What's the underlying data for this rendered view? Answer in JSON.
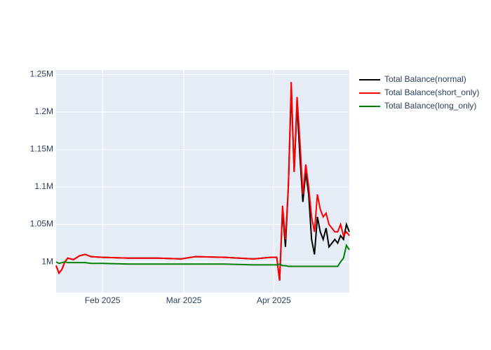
{
  "chart_data": {
    "type": "line",
    "x": [
      "2025-01-16",
      "2025-01-17",
      "2025-01-18",
      "2025-01-19",
      "2025-01-20",
      "2025-01-22",
      "2025-01-24",
      "2025-01-26",
      "2025-01-28",
      "2025-02-01",
      "2025-02-10",
      "2025-02-20",
      "2025-02-28",
      "2025-03-05",
      "2025-03-15",
      "2025-03-25",
      "2025-03-31",
      "2025-04-02",
      "2025-04-03",
      "2025-04-04",
      "2025-04-05",
      "2025-04-06",
      "2025-04-07",
      "2025-04-08",
      "2025-04-09",
      "2025-04-10",
      "2025-04-11",
      "2025-04-12",
      "2025-04-13",
      "2025-04-14",
      "2025-04-15",
      "2025-04-16",
      "2025-04-17",
      "2025-04-18",
      "2025-04-19",
      "2025-04-20",
      "2025-04-21",
      "2025-04-22",
      "2025-04-23",
      "2025-04-24",
      "2025-04-25",
      "2025-04-26",
      "2025-04-27"
    ],
    "series": [
      {
        "name": "Total Balance(normal)",
        "color": "#000000",
        "values": [
          995000,
          985000,
          990000,
          1000000,
          1005000,
          1003000,
          1008000,
          1010000,
          1007000,
          1006000,
          1005000,
          1005000,
          1004000,
          1007000,
          1006000,
          1004000,
          1006000,
          1006000,
          975000,
          1070000,
          1020000,
          1100000,
          1230000,
          1120000,
          1210000,
          1140000,
          1080000,
          1120000,
          1090000,
          1030000,
          1010000,
          1060000,
          1040000,
          1030000,
          1045000,
          1020000,
          1025000,
          1030000,
          1025000,
          1035000,
          1030000,
          1050000,
          1040000
        ]
      },
      {
        "name": "Total Balance(short_only)",
        "color": "#ff0000",
        "values": [
          995000,
          985000,
          990000,
          1000000,
          1005000,
          1003000,
          1008000,
          1010000,
          1007000,
          1006000,
          1005000,
          1005000,
          1004000,
          1007000,
          1006000,
          1004000,
          1006000,
          1006000,
          975000,
          1075000,
          1030000,
          1100000,
          1240000,
          1120000,
          1220000,
          1160000,
          1090000,
          1130000,
          1100000,
          1060000,
          1040000,
          1090000,
          1070000,
          1060000,
          1065000,
          1050000,
          1045000,
          1040000,
          1040000,
          1050000,
          1035000,
          1040000,
          1035000
        ]
      },
      {
        "name": "Total Balance(long_only)",
        "color": "#008000",
        "values": [
          1000000,
          998000,
          999000,
          1000000,
          999000,
          999000,
          999000,
          999000,
          998000,
          998000,
          997000,
          997000,
          997000,
          997000,
          997000,
          996000,
          996000,
          996000,
          997000,
          995000,
          995000,
          994000,
          994000,
          994000,
          994000,
          994000,
          994000,
          994000,
          994000,
          994000,
          994000,
          994000,
          994000,
          994000,
          994000,
          994000,
          994000,
          994000,
          994000,
          1000000,
          1005000,
          1022000,
          1016000
        ]
      }
    ],
    "xlim": [
      "2025-01-16",
      "2025-04-27"
    ],
    "xticks": [
      {
        "value": "2025-02-01",
        "label": "Feb 2025"
      },
      {
        "value": "2025-03-01",
        "label": "Mar 2025"
      },
      {
        "value": "2025-04-01",
        "label": "Apr 2025"
      }
    ],
    "ylim": [
      959000,
      1256000
    ],
    "yticks": [
      {
        "value": 1000000,
        "label": "1M"
      },
      {
        "value": 1050000,
        "label": "1.05M"
      },
      {
        "value": 1100000,
        "label": "1.1M"
      },
      {
        "value": 1150000,
        "label": "1.15M"
      },
      {
        "value": 1200000,
        "label": "1.2M"
      },
      {
        "value": 1250000,
        "label": "1.25M"
      }
    ],
    "grid": true,
    "legend": "right"
  }
}
